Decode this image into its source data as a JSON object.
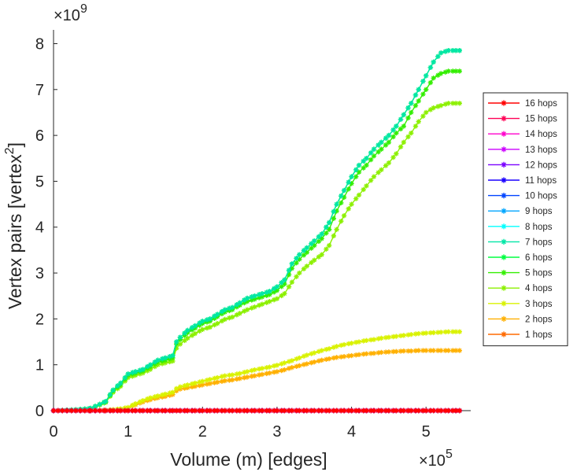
{
  "chart_data": {
    "type": "line",
    "title": "",
    "xlabel": "Volume (m) [edges]",
    "ylabel": "Vertex pairs [vertex",
    "ylabel_superscript": "2",
    "ylabel_close": "]",
    "x_exponent_base": "×10",
    "x_exponent_power": "5",
    "y_exponent_base": "×10",
    "y_exponent_power": "9",
    "x_scale": 100000,
    "y_scale": 1000000000,
    "xlim": [
      0,
      5.6
    ],
    "ylim": [
      0,
      8.3
    ],
    "x_ticks": [
      0,
      1,
      2,
      3,
      4,
      5
    ],
    "x_tick_labels": [
      "0",
      "1",
      "2",
      "3",
      "4",
      "5"
    ],
    "y_ticks": [
      0,
      1,
      2,
      3,
      4,
      5,
      6,
      7,
      8
    ],
    "y_tick_labels": [
      "0",
      "1",
      "2",
      "3",
      "4",
      "5",
      "6",
      "7",
      "8"
    ],
    "grid": false,
    "legend_position": "right",
    "x": [
      0,
      0.3,
      0.5,
      0.7,
      0.8,
      0.9,
      1.0,
      1.1,
      1.2,
      1.3,
      1.4,
      1.5,
      1.6,
      1.65,
      1.7,
      1.8,
      1.9,
      2.0,
      2.1,
      2.2,
      2.3,
      2.4,
      2.5,
      2.6,
      2.7,
      2.8,
      2.9,
      3.0,
      3.1,
      3.2,
      3.3,
      3.4,
      3.5,
      3.6,
      3.7,
      3.8,
      3.9,
      4.0,
      4.1,
      4.2,
      4.3,
      4.4,
      4.5,
      4.6,
      4.7,
      4.8,
      4.9,
      5.0,
      5.1,
      5.2,
      5.3,
      5.4,
      5.45
    ],
    "series": [
      {
        "name": "16 hops",
        "color": "#ff0000",
        "values": [
          0,
          0,
          0,
          0,
          0,
          0,
          0,
          0,
          0,
          0,
          0,
          0,
          0,
          0,
          0,
          0,
          0,
          0,
          0,
          0,
          0,
          0,
          0,
          0,
          0,
          0,
          0,
          0,
          0,
          0,
          0,
          0,
          0,
          0,
          0,
          0,
          0,
          0,
          0,
          0,
          0,
          0,
          0,
          0,
          0,
          0,
          0,
          0,
          0,
          0,
          0,
          0,
          0
        ]
      },
      {
        "name": "15 hops",
        "color": "#ff0055",
        "values": [
          0,
          0,
          0,
          0,
          0,
          0,
          0,
          0,
          0,
          0,
          0,
          0,
          0,
          0,
          0,
          0,
          0,
          0,
          0,
          0,
          0,
          0,
          0,
          0,
          0,
          0,
          0,
          0,
          0,
          0,
          0,
          0,
          0,
          0,
          0,
          0,
          0,
          0,
          0,
          0,
          0,
          0,
          0,
          0,
          0,
          0,
          0,
          0,
          0,
          0,
          0,
          0,
          0
        ]
      },
      {
        "name": "14 hops",
        "color": "#ff00cc",
        "values": [
          0,
          0,
          0,
          0,
          0,
          0,
          0,
          0,
          0,
          0,
          0,
          0,
          0,
          0,
          0,
          0,
          0,
          0,
          0,
          0,
          0,
          0,
          0,
          0,
          0,
          0,
          0,
          0,
          0,
          0,
          0,
          0,
          0,
          0,
          0,
          0,
          0,
          0,
          0,
          0,
          0,
          0,
          0,
          0,
          0,
          0,
          0,
          0,
          0,
          0,
          0,
          0,
          0
        ]
      },
      {
        "name": "13 hops",
        "color": "#cc00ff",
        "values": [
          0,
          0,
          0,
          0,
          0,
          0,
          0,
          0,
          0,
          0,
          0,
          0,
          0,
          0,
          0,
          0,
          0,
          0,
          0,
          0,
          0,
          0,
          0,
          0,
          0,
          0,
          0,
          0,
          0,
          0,
          0,
          0,
          0,
          0,
          0,
          0,
          0,
          0,
          0,
          0,
          0,
          0,
          0,
          0,
          0,
          0,
          0,
          0,
          0,
          0,
          0,
          0,
          0
        ]
      },
      {
        "name": "12 hops",
        "color": "#7a00ff",
        "values": [
          0,
          0,
          0,
          0,
          0,
          0,
          0,
          0,
          0,
          0,
          0,
          0,
          0,
          0,
          0,
          0,
          0,
          0,
          0,
          0,
          0,
          0,
          0,
          0,
          0,
          0,
          0,
          0,
          0,
          0,
          0,
          0,
          0,
          0,
          0,
          0,
          0,
          0,
          0,
          0,
          0,
          0,
          0,
          0,
          0,
          0,
          0,
          0,
          0,
          0,
          0,
          0,
          0
        ]
      },
      {
        "name": "11 hops",
        "color": "#1a00ff",
        "values": [
          0,
          0,
          0,
          0,
          0,
          0,
          0,
          0,
          0,
          0,
          0,
          0,
          0,
          0,
          0,
          0,
          0,
          0,
          0,
          0,
          0,
          0,
          0,
          0,
          0,
          0,
          0,
          0,
          0,
          0,
          0,
          0,
          0,
          0,
          0,
          0,
          0,
          0,
          0,
          0,
          0,
          0,
          0,
          0,
          0,
          0,
          0,
          0,
          0,
          0,
          0,
          0,
          0
        ]
      },
      {
        "name": "10 hops",
        "color": "#0044ff",
        "values": [
          0,
          0,
          0,
          0,
          0,
          0,
          0,
          0,
          0,
          0,
          0,
          0,
          0,
          0,
          0,
          0,
          0,
          0,
          0,
          0,
          0,
          0,
          0,
          0,
          0,
          0,
          0,
          0,
          0,
          0,
          0,
          0,
          0,
          0,
          0,
          0,
          0,
          0,
          0,
          0,
          0,
          0,
          0,
          0,
          0,
          0,
          0,
          0,
          0,
          0,
          0,
          0,
          0
        ]
      },
      {
        "name": "9 hops",
        "color": "#00a6ff",
        "values": [
          0,
          0,
          0,
          0,
          0,
          0,
          0,
          0,
          0,
          0,
          0,
          0,
          0,
          0,
          0,
          0,
          0,
          0,
          0,
          0,
          0,
          0,
          0,
          0,
          0,
          0,
          0,
          0,
          0,
          0,
          0,
          0,
          0,
          0,
          0,
          0,
          0,
          0,
          0,
          0,
          0,
          0,
          0,
          0,
          0,
          0,
          0,
          0,
          0,
          0,
          0,
          0,
          0
        ]
      },
      {
        "name": "8 hops",
        "color": "#00ffff",
        "values": [
          0,
          0,
          0,
          0,
          0,
          0,
          0,
          0,
          0,
          0,
          0,
          0,
          0,
          0,
          0,
          0,
          0,
          0,
          0,
          0,
          0,
          0,
          0,
          0,
          0,
          0,
          0,
          0,
          0,
          0,
          0,
          0,
          0,
          0,
          0,
          0,
          0,
          0,
          0,
          0,
          0,
          0,
          0,
          0,
          0,
          0,
          0,
          0,
          0,
          0,
          0,
          0,
          0
        ]
      },
      {
        "name": "7 hops",
        "color": "#00e6a6",
        "values": [
          0,
          0.02,
          0.05,
          0.2,
          0.45,
          0.6,
          0.8,
          0.85,
          0.9,
          1.0,
          1.1,
          1.15,
          1.2,
          1.5,
          1.6,
          1.75,
          1.85,
          1.95,
          2.0,
          2.1,
          2.2,
          2.25,
          2.35,
          2.45,
          2.5,
          2.55,
          2.6,
          2.7,
          2.85,
          3.2,
          3.4,
          3.55,
          3.7,
          3.85,
          4.1,
          4.5,
          4.8,
          5.1,
          5.35,
          5.5,
          5.7,
          5.85,
          6.0,
          6.2,
          6.45,
          6.7,
          7.0,
          7.3,
          7.6,
          7.8,
          7.85,
          7.85,
          7.85
        ]
      },
      {
        "name": "6 hops",
        "color": "#00ff40",
        "values": [
          0,
          0.02,
          0.05,
          0.2,
          0.45,
          0.6,
          0.8,
          0.85,
          0.9,
          1.0,
          1.1,
          1.15,
          1.2,
          1.5,
          1.6,
          1.75,
          1.85,
          1.95,
          2.0,
          2.1,
          2.2,
          2.25,
          2.35,
          2.45,
          2.5,
          2.55,
          2.6,
          2.7,
          2.85,
          3.2,
          3.4,
          3.55,
          3.7,
          3.85,
          4.1,
          4.5,
          4.8,
          5.1,
          5.35,
          5.5,
          5.7,
          5.85,
          6.0,
          6.2,
          6.45,
          6.7,
          7.0,
          7.3,
          7.6,
          7.8,
          7.85,
          7.85,
          7.85
        ]
      },
      {
        "name": "5 hops",
        "color": "#33ee00",
        "values": [
          0,
          0.02,
          0.05,
          0.19,
          0.43,
          0.57,
          0.77,
          0.82,
          0.87,
          0.96,
          1.06,
          1.1,
          1.15,
          1.45,
          1.55,
          1.7,
          1.8,
          1.9,
          1.95,
          2.05,
          2.15,
          2.2,
          2.3,
          2.38,
          2.43,
          2.48,
          2.53,
          2.62,
          2.76,
          3.1,
          3.3,
          3.45,
          3.6,
          3.75,
          3.95,
          4.35,
          4.65,
          4.95,
          5.2,
          5.35,
          5.55,
          5.7,
          5.85,
          6.05,
          6.2,
          6.5,
          6.75,
          7.0,
          7.25,
          7.35,
          7.4,
          7.4,
          7.4
        ]
      },
      {
        "name": "4 hops",
        "color": "#8cf000",
        "values": [
          0,
          0.02,
          0.04,
          0.18,
          0.4,
          0.53,
          0.72,
          0.77,
          0.82,
          0.9,
          1.0,
          1.04,
          1.08,
          1.36,
          1.45,
          1.58,
          1.68,
          1.77,
          1.82,
          1.9,
          1.99,
          2.04,
          2.12,
          2.2,
          2.26,
          2.32,
          2.38,
          2.44,
          2.55,
          2.8,
          3.0,
          3.15,
          3.28,
          3.4,
          3.6,
          3.95,
          4.25,
          4.5,
          4.7,
          4.9,
          5.1,
          5.25,
          5.4,
          5.6,
          5.85,
          6.05,
          6.3,
          6.5,
          6.6,
          6.65,
          6.7,
          6.7,
          6.7
        ]
      },
      {
        "name": "3 hops",
        "color": "#d9f200",
        "values": [
          0,
          0,
          0,
          0.01,
          0.02,
          0.04,
          0.07,
          0.15,
          0.22,
          0.28,
          0.32,
          0.36,
          0.4,
          0.48,
          0.52,
          0.56,
          0.6,
          0.64,
          0.68,
          0.72,
          0.76,
          0.78,
          0.81,
          0.85,
          0.89,
          0.92,
          0.95,
          0.99,
          1.04,
          1.09,
          1.15,
          1.21,
          1.26,
          1.31,
          1.35,
          1.4,
          1.44,
          1.47,
          1.5,
          1.53,
          1.55,
          1.58,
          1.6,
          1.62,
          1.64,
          1.66,
          1.68,
          1.69,
          1.7,
          1.71,
          1.72,
          1.72,
          1.72
        ]
      },
      {
        "name": "2 hops",
        "color": "#ffb000",
        "values": [
          0,
          0,
          0,
          0.01,
          0.02,
          0.03,
          0.06,
          0.13,
          0.19,
          0.24,
          0.28,
          0.31,
          0.35,
          0.43,
          0.47,
          0.5,
          0.53,
          0.56,
          0.59,
          0.62,
          0.65,
          0.67,
          0.7,
          0.73,
          0.76,
          0.79,
          0.82,
          0.85,
          0.89,
          0.94,
          0.98,
          1.02,
          1.06,
          1.1,
          1.13,
          1.16,
          1.18,
          1.2,
          1.22,
          1.24,
          1.25,
          1.27,
          1.28,
          1.29,
          1.3,
          1.3,
          1.31,
          1.31,
          1.31,
          1.31,
          1.31,
          1.31,
          1.31
        ]
      },
      {
        "name": "1 hops",
        "color": "#ff6a00",
        "values": [
          0,
          0,
          0,
          0,
          0,
          0,
          0,
          0,
          0,
          0,
          0,
          0,
          0,
          0,
          0,
          0,
          0,
          0,
          0,
          0,
          0,
          0,
          0,
          0,
          0,
          0,
          0,
          0,
          0,
          0,
          0,
          0,
          0,
          0,
          0,
          0,
          0,
          0,
          0,
          0,
          0,
          0,
          0,
          0,
          0,
          0,
          0,
          0,
          0,
          0,
          0,
          0,
          0
        ]
      }
    ]
  }
}
